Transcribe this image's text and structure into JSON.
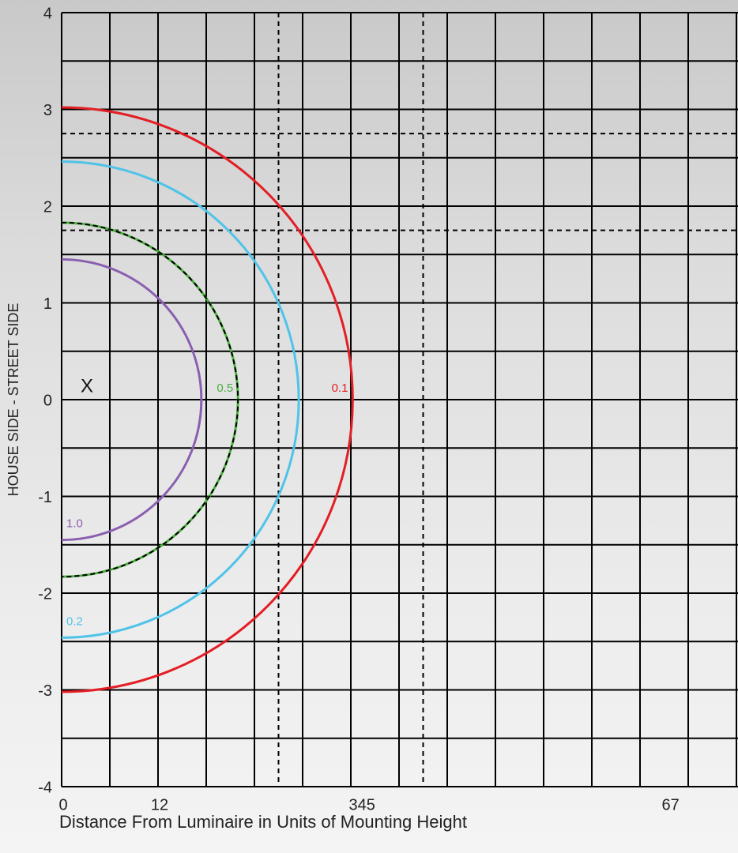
{
  "chart_data": {
    "type": "isocontour",
    "x_label": "Distance From Luminaire in Units of Mounting Height",
    "y_label": "HOUSE SIDE - STREET SIDE",
    "marker": "X",
    "xlim": [
      0,
      7
    ],
    "ylim": [
      -4,
      4
    ],
    "xticks": [
      0,
      {
        "value": 1,
        "label": "12"
      },
      {
        "value": 3.1,
        "label": "345"
      },
      {
        "value": 6.3,
        "label": "67"
      }
    ],
    "yticks": [
      -4,
      -3,
      -2,
      -1,
      0,
      1,
      2,
      3,
      4
    ],
    "grid": true,
    "grid_step": 0.5,
    "dashed_x": [
      1,
      2.25,
      3.75,
      6
    ],
    "dashed_y": [
      2.75,
      1.75,
      -1
    ],
    "series": [
      {
        "name": "0.1",
        "color": "#e31e24",
        "radius": 3.02
      },
      {
        "name": "0.2",
        "color": "#4fc3e8",
        "radius": 2.46
      },
      {
        "name": "0.5",
        "color": "#4caf3f",
        "radius": 1.83,
        "dashed": true
      },
      {
        "name": "1.0",
        "color": "#8a5fb0",
        "radius": 1.45
      }
    ]
  }
}
